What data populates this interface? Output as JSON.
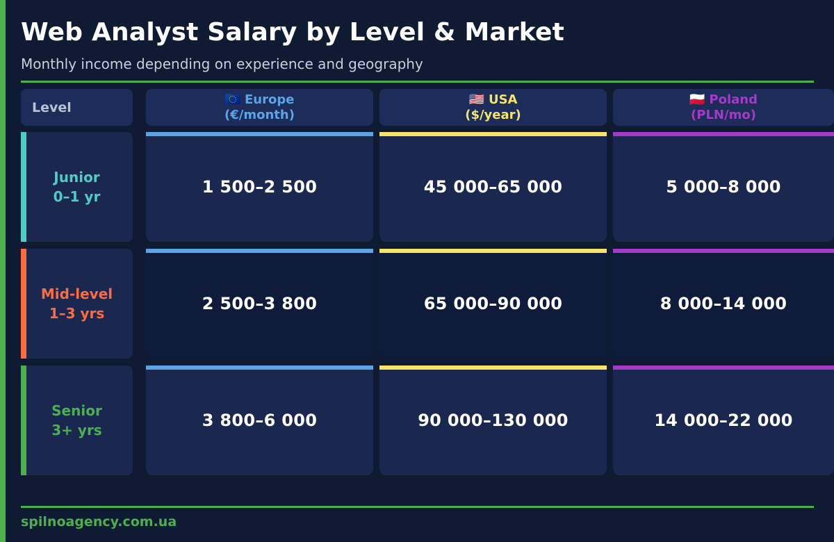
{
  "colors": {
    "background": "#0f1a33",
    "accent_green": "#4caf50",
    "row_odd": "#1a2850",
    "row_even": "#0f1b3b"
  },
  "title": "Web Analyst Salary by Level & Market",
  "subtitle": "Monthly income depending on experience and geography",
  "footer": "spilnoagency.com.ua",
  "chart_data": {
    "type": "table",
    "title": "Web Analyst Salary by Level & Market",
    "subtitle": "Monthly income depending on experience and geography",
    "level_header": "Level",
    "columns": [
      {
        "flag": "🇪🇺",
        "market": "Europe",
        "unit": "(€/month)",
        "color": "#5ba4e6"
      },
      {
        "flag": "🇺🇸",
        "market": "USA",
        "unit": "($/year)",
        "color": "#f5e36a"
      },
      {
        "flag": "🇵🇱",
        "market": "Poland",
        "unit": "(PLN/mo)",
        "color": "#a43ac7"
      }
    ],
    "rows": [
      {
        "level": "Junior",
        "experience": "0–1 yr",
        "color": "#4ecdc4",
        "values": [
          "1 500–2 500",
          "45 000–65 000",
          "5 000–8 000"
        ]
      },
      {
        "level": "Mid-level",
        "experience": "1–3 yrs",
        "color": "#ff6b3d",
        "values": [
          "2 500–3 800",
          "65 000–90 000",
          "8 000–14 000"
        ]
      },
      {
        "level": "Senior",
        "experience": "3+ yrs",
        "color": "#4caf50",
        "values": [
          "3 800–6 000",
          "90 000–130 000",
          "14 000–22 000"
        ]
      }
    ]
  }
}
